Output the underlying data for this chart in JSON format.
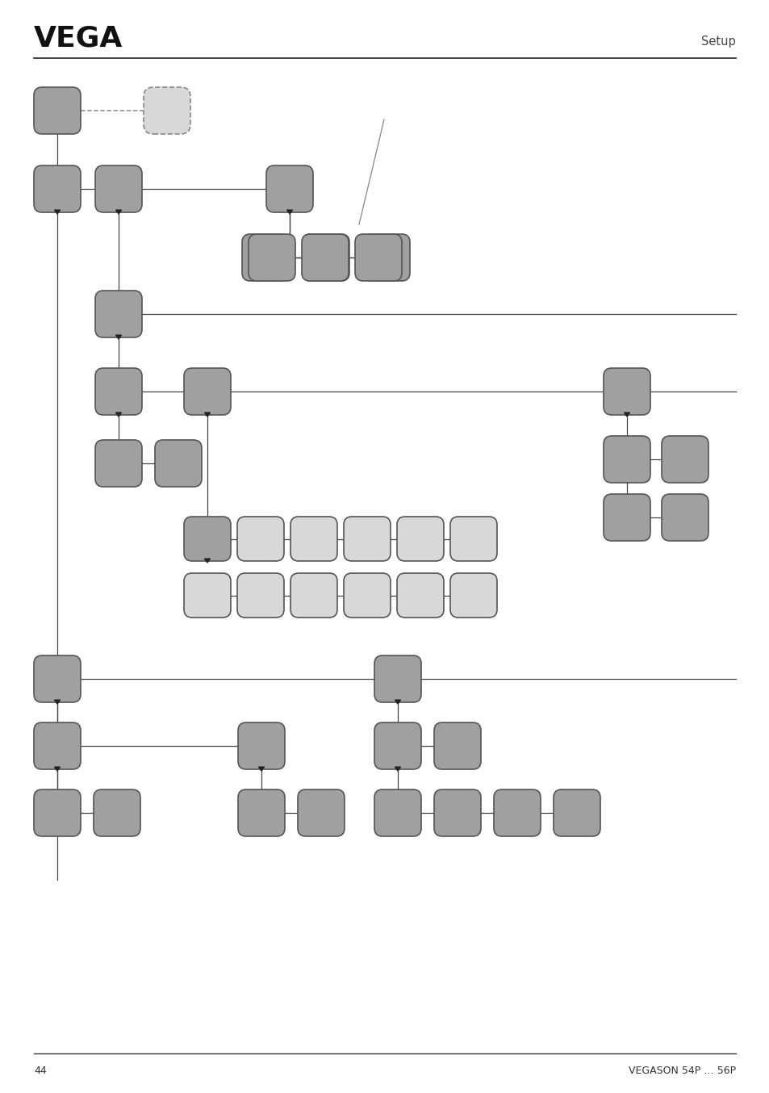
{
  "page_width": 9.54,
  "page_height": 13.54,
  "bg_color": "#ffffff",
  "vega_text": "VEGA",
  "setup_text": "Setup",
  "page_num": "44",
  "footer_right": "VEGASON 54P … 56P",
  "box_dark": "#a0a0a0",
  "box_light": "#d8d8d8",
  "box_darker": "#888888",
  "line_color": "#444444",
  "dash_color": "#888888"
}
